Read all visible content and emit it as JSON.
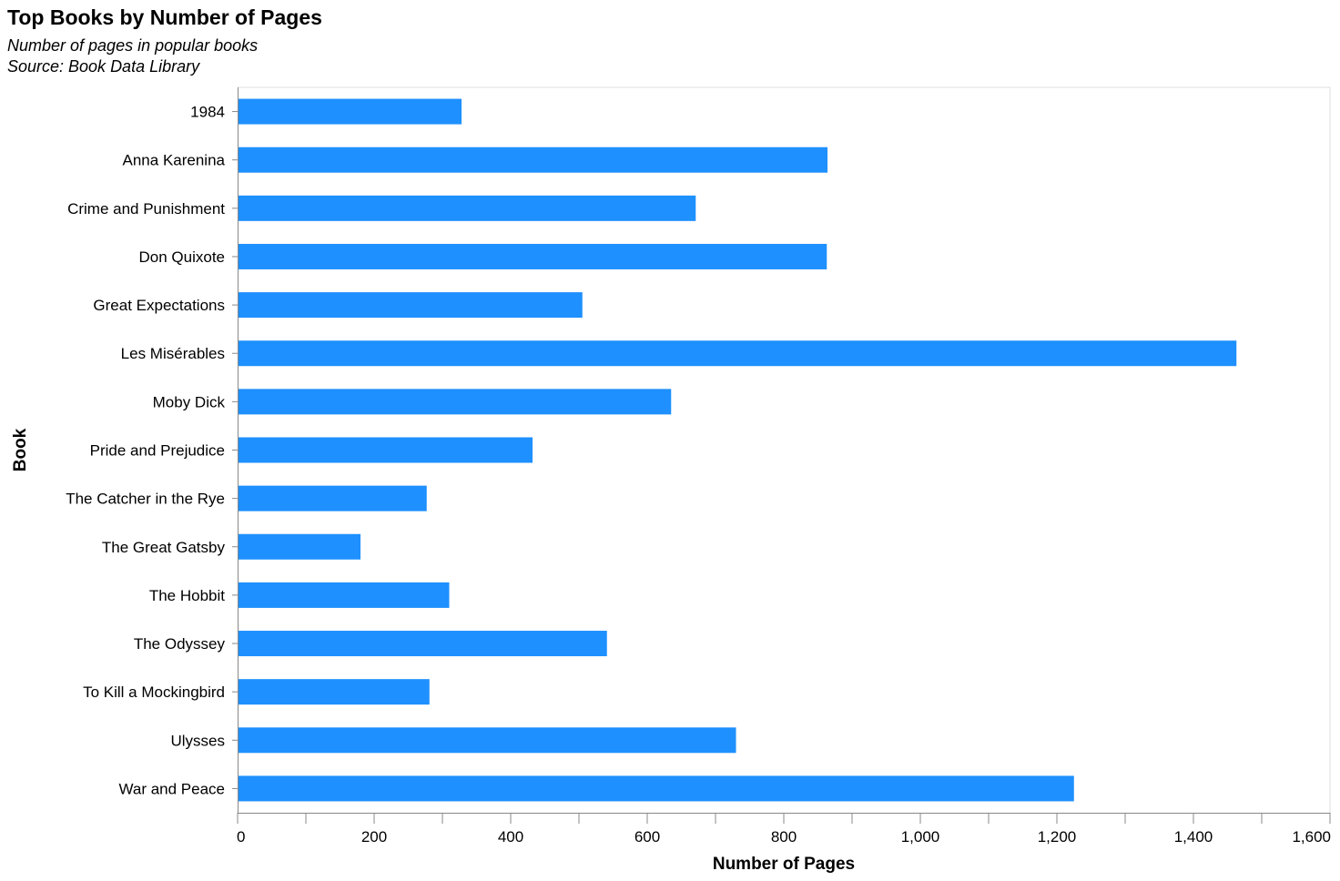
{
  "header": {
    "title": "Top Books by Number of Pages",
    "subtitle_lines": [
      "Number of pages in popular books",
      "Source: Book Data Library"
    ]
  },
  "chart_data": {
    "type": "bar",
    "orientation": "horizontal",
    "title": "Top Books by Number of Pages",
    "subtitle": [
      "Number of pages in popular books",
      "Source: Book Data Library"
    ],
    "xlabel": "Number of Pages",
    "ylabel": "Book",
    "xlim": [
      0,
      1600
    ],
    "x_ticks": [
      0,
      200,
      400,
      600,
      800,
      1000,
      1200,
      1400,
      1600
    ],
    "x_tick_labels": [
      "0",
      "200",
      "400",
      "600",
      "800",
      "1,000",
      "1,200",
      "1,400",
      "1,600"
    ],
    "grid": false,
    "bar_color": "#1e90ff",
    "categories": [
      "1984",
      "Anna Karenina",
      "Crime and Punishment",
      "Don Quixote",
      "Great Expectations",
      "Les Misérables",
      "Moby Dick",
      "Pride and Prejudice",
      "The Catcher in the Rye",
      "The Great Gatsby",
      "The Hobbit",
      "The Odyssey",
      "To Kill a Mockingbird",
      "Ulysses",
      "War and Peace"
    ],
    "values": [
      328,
      864,
      671,
      863,
      505,
      1463,
      635,
      432,
      277,
      180,
      310,
      541,
      281,
      730,
      1225
    ]
  }
}
